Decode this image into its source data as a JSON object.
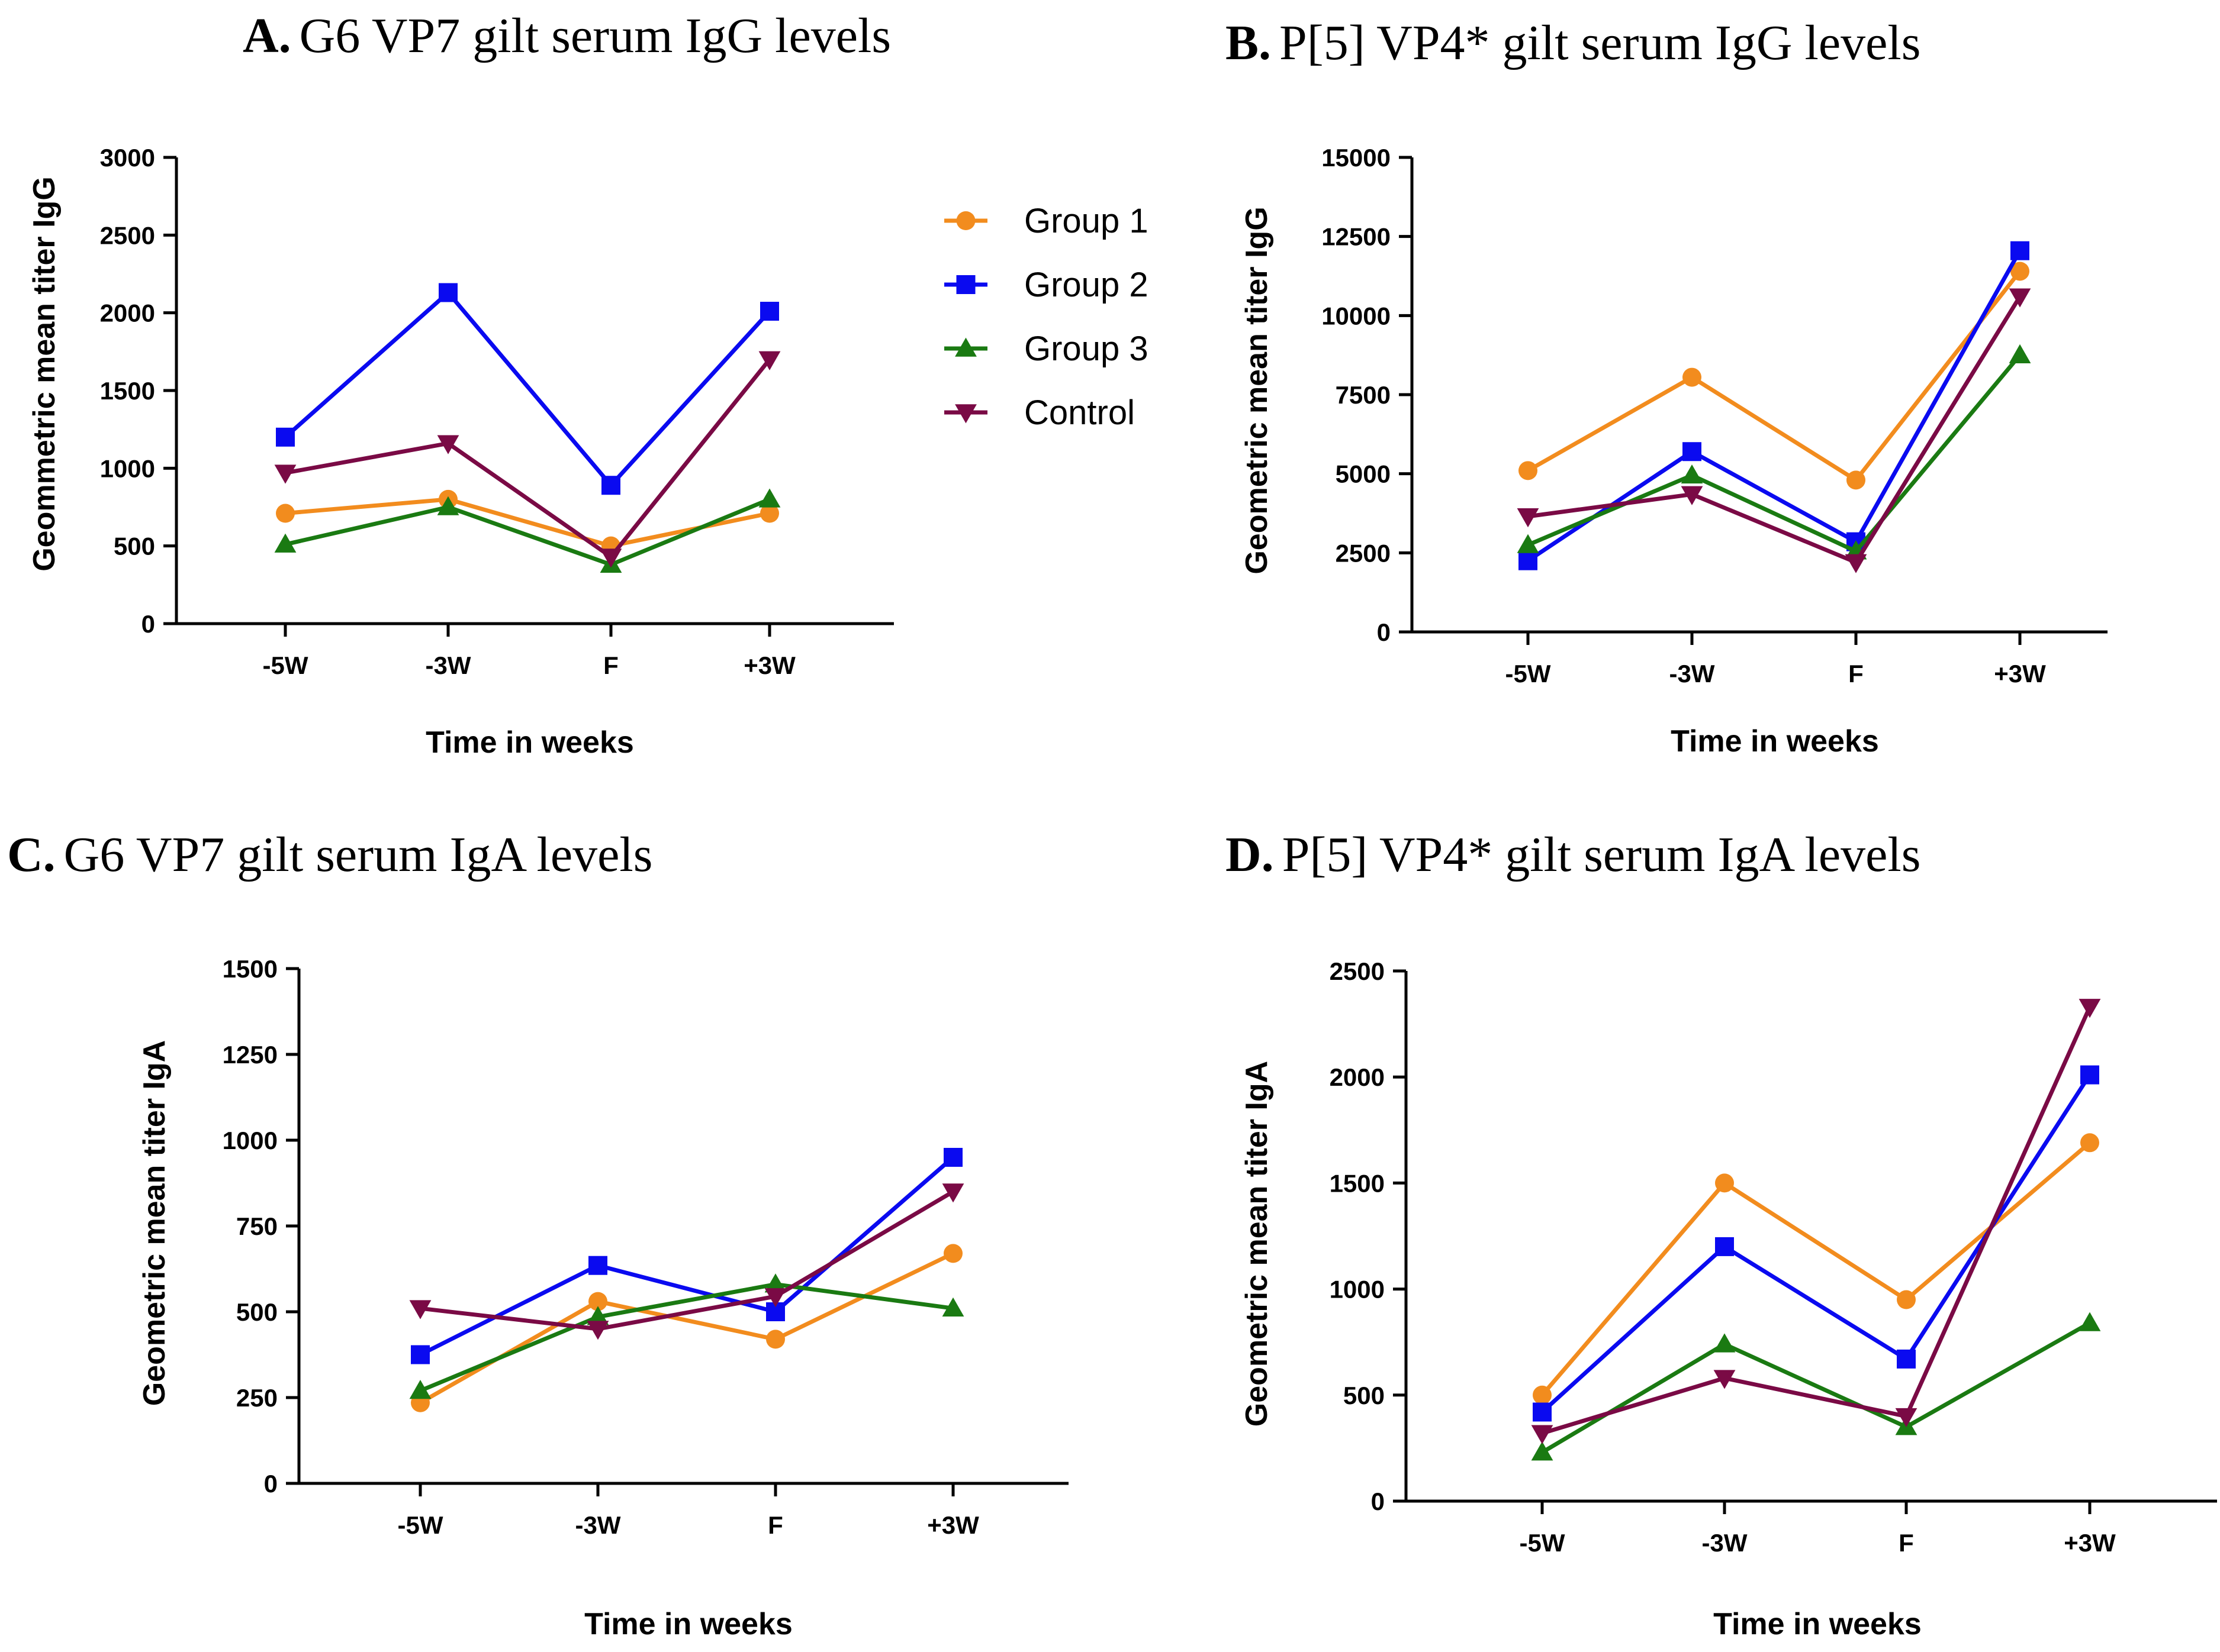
{
  "series_styles": [
    {
      "name": "Group 1",
      "color": "#F28C1E",
      "marker": "circle"
    },
    {
      "name": "Group 2",
      "color": "#0A0AF0",
      "marker": "square"
    },
    {
      "name": "Group 3",
      "color": "#1A7A12",
      "marker": "triangle-up"
    },
    {
      "name": "Control",
      "color": "#7A0A45",
      "marker": "triangle-down"
    }
  ],
  "legend": {
    "items": [
      "Group 1",
      "Group 2",
      "Group 3",
      "Control"
    ]
  },
  "chart_data": [
    {
      "type": "line",
      "panel": "A.",
      "title": "G6 VP7 gilt serum IgG levels",
      "xlabel": "Time in weeks",
      "ylabel": "Geommetric mean titer IgG",
      "categories": [
        "-5W",
        "-3W",
        "F",
        "+3W"
      ],
      "ylim": [
        0,
        3000
      ],
      "yticks": [
        0,
        500,
        1000,
        1500,
        2000,
        2500,
        3000
      ],
      "series": [
        {
          "name": "Group 1",
          "values": [
            710,
            800,
            500,
            710
          ]
        },
        {
          "name": "Group 2",
          "values": [
            1200,
            2130,
            890,
            2010
          ]
        },
        {
          "name": "Group 3",
          "values": [
            510,
            750,
            380,
            800
          ]
        },
        {
          "name": "Control",
          "values": [
            970,
            1160,
            430,
            1700
          ]
        }
      ]
    },
    {
      "type": "line",
      "panel": "B.",
      "title": "P[5] VP4* gilt serum IgG levels",
      "xlabel": "Time in weeks",
      "ylabel": "Geometric mean titer IgG",
      "categories": [
        "-5W",
        "-3W",
        "F",
        "+3W"
      ],
      "ylim": [
        0,
        15000
      ],
      "yticks": [
        0,
        2500,
        5000,
        7500,
        10000,
        12500,
        15000
      ],
      "series": [
        {
          "name": "Group 1",
          "values": [
            5100,
            8050,
            4800,
            11400
          ]
        },
        {
          "name": "Group 2",
          "values": [
            2250,
            5700,
            2850,
            12050
          ]
        },
        {
          "name": "Group 3",
          "values": [
            2750,
            4950,
            2550,
            8750
          ]
        },
        {
          "name": "Control",
          "values": [
            3650,
            4350,
            2200,
            10600
          ]
        }
      ]
    },
    {
      "type": "line",
      "panel": "C.",
      "title": "G6 VP7 gilt serum IgA levels",
      "xlabel": "Time in weeks",
      "ylabel": "Geometric mean titer IgA",
      "categories": [
        "-5W",
        "-3W",
        "F",
        "+3W"
      ],
      "ylim": [
        0,
        1500
      ],
      "yticks": [
        0,
        250,
        500,
        750,
        1000,
        1250,
        1500
      ],
      "series": [
        {
          "name": "Group 1",
          "values": [
            235,
            530,
            420,
            670
          ]
        },
        {
          "name": "Group 2",
          "values": [
            375,
            635,
            500,
            950
          ]
        },
        {
          "name": "Group 3",
          "values": [
            270,
            485,
            580,
            510
          ]
        },
        {
          "name": "Control",
          "values": [
            510,
            450,
            545,
            850
          ]
        }
      ]
    },
    {
      "type": "line",
      "panel": "D.",
      "title": "P[5] VP4* gilt serum IgA levels",
      "xlabel": "Time in weeks",
      "ylabel": "Geometric mean titer IgA",
      "categories": [
        "-5W",
        "-3W",
        "F",
        "+3W"
      ],
      "ylim": [
        0,
        2500
      ],
      "yticks": [
        0,
        500,
        1000,
        1500,
        2000,
        2500
      ],
      "series": [
        {
          "name": "Group 1",
          "values": [
            500,
            1500,
            950,
            1690
          ]
        },
        {
          "name": "Group 2",
          "values": [
            420,
            1200,
            670,
            2010
          ]
        },
        {
          "name": "Group 3",
          "values": [
            230,
            740,
            350,
            840
          ]
        },
        {
          "name": "Control",
          "values": [
            320,
            580,
            400,
            2330
          ]
        }
      ]
    }
  ]
}
